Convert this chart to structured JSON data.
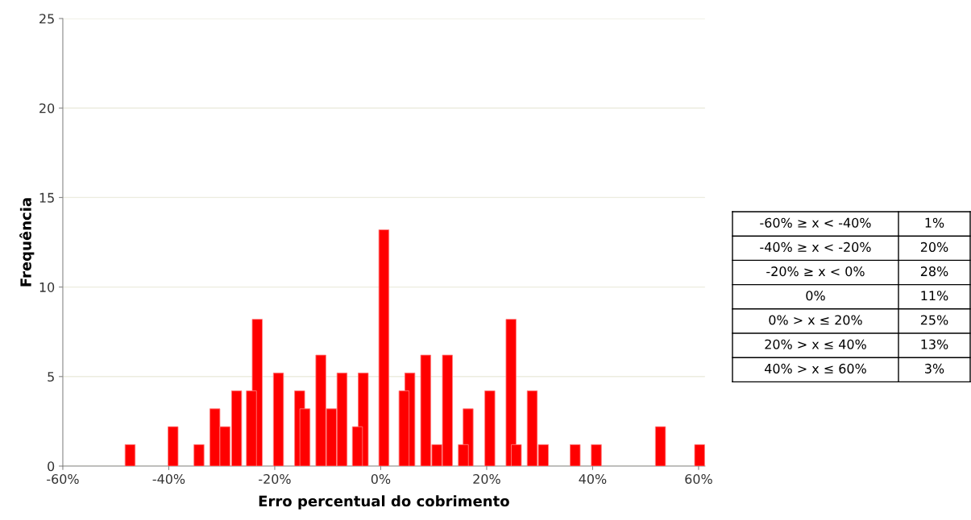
{
  "chart_data": {
    "type": "bar",
    "xlabel": "Erro percentual do cobrimento",
    "ylabel": "Frequência",
    "x": [
      -47.3,
      -39.2,
      -34.3,
      -31.3,
      -29.4,
      -27.2,
      -24.4,
      -23.3,
      -19.3,
      -15.3,
      -14.3,
      -11.3,
      -9.3,
      -7.3,
      -4.4,
      -3.3,
      0.6,
      4.4,
      5.5,
      8.5,
      10.6,
      12.6,
      15.6,
      16.5,
      20.6,
      24.6,
      25.6,
      28.6,
      30.7,
      36.7,
      40.7,
      52.8,
      60.2
    ],
    "values": [
      1.2,
      2.2,
      1.2,
      3.2,
      2.2,
      4.2,
      4.2,
      8.2,
      5.2,
      4.2,
      3.2,
      6.2,
      3.2,
      5.2,
      2.2,
      5.2,
      13.2,
      4.2,
      5.2,
      6.2,
      1.2,
      6.2,
      1.2,
      3.2,
      4.2,
      8.2,
      1.2,
      4.2,
      1.2,
      1.2,
      1.2,
      2.2,
      1.2
    ],
    "color": "#ff0000",
    "xlim": [
      -60,
      61.2
    ],
    "xticks": [
      {
        "value": -60,
        "label": "-60%"
      },
      {
        "value": -40,
        "label": "-40%"
      },
      {
        "value": -20,
        "label": "-20%"
      },
      {
        "value": 0,
        "label": "0%"
      },
      {
        "value": 20,
        "label": "20%"
      },
      {
        "value": 40,
        "label": "40%"
      },
      {
        "value": 60,
        "label": "60%"
      }
    ],
    "ylim": [
      0,
      25
    ],
    "yticks": [
      0,
      5,
      10,
      15,
      20,
      25
    ],
    "grid": "y",
    "legend": false,
    "annotations": [
      "-60% ≥ x < -40%",
      "1%",
      "-40% ≥ x < -20%",
      "20%",
      "-20% ≥ x < 0%",
      "28%",
      "0%",
      "11%",
      "0% > x ≤ 20%",
      "25%",
      "20% > x ≤ 40%",
      "13%",
      "40% > x ≤ 60%",
      "3%"
    ]
  }
}
